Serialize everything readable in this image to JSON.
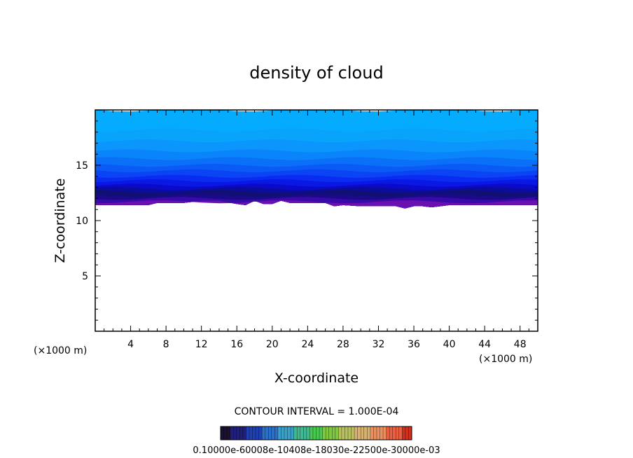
{
  "chart_data": {
    "type": "contour",
    "title": "density of cloud",
    "xlabel": "X-coordinate",
    "ylabel": "Z-coordinate",
    "x_unit": "(×1000 m)",
    "y_unit": "(×1000 m)",
    "xlim": [
      0,
      50
    ],
    "ylim": [
      0,
      20
    ],
    "x_ticks": [
      4,
      8,
      12,
      16,
      20,
      24,
      28,
      32,
      36,
      40,
      44,
      48
    ],
    "y_ticks": [
      5,
      10,
      15
    ],
    "x_tick_labels": [
      "4",
      "8",
      "12",
      "16",
      "20",
      "24",
      "28",
      "32",
      "36",
      "40",
      "44",
      "48"
    ],
    "y_tick_labels": [
      "5",
      "10",
      "15"
    ],
    "contour_interval_text": "CONTOUR INTERVAL = 1.000E-04",
    "colorbar_labels_text": "0.10000e-60008e-10408e-18030e-22500e-30000e-03",
    "cloud_base_profile": {
      "x": [
        0,
        2,
        4,
        6,
        7,
        8,
        10,
        12,
        14,
        16,
        17,
        18,
        19,
        20,
        21,
        22,
        24,
        26,
        27,
        28,
        30,
        32,
        34,
        35,
        36,
        37,
        38,
        40,
        42,
        44,
        46,
        48,
        50
      ],
      "z": [
        11.4,
        11.4,
        11.4,
        11.4,
        11.6,
        11.6,
        11.6,
        11.8,
        11.8,
        11.5,
        11.4,
        11.8,
        11.5,
        11.5,
        11.8,
        11.6,
        11.6,
        11.6,
        11.3,
        11.4,
        11.3,
        11.3,
        11.3,
        11.1,
        11.3,
        11.3,
        11.2,
        11.4,
        11.4,
        11.4,
        11.4,
        11.4,
        11.4
      ]
    },
    "color_bands": [
      {
        "z_top": 11.7,
        "color": "#6a0fb0"
      },
      {
        "z_top": 12.0,
        "color": "#3a0aa8"
      },
      {
        "z_top": 12.3,
        "color": "#1a0a8a"
      },
      {
        "z_top": 12.6,
        "color": "#101070"
      },
      {
        "z_top": 12.9,
        "color": "#0c0c9a"
      },
      {
        "z_top": 13.2,
        "color": "#0a0ac8"
      },
      {
        "z_top": 13.6,
        "color": "#0a18e6"
      },
      {
        "z_top": 14.0,
        "color": "#0a2cf0"
      },
      {
        "z_top": 14.5,
        "color": "#0a44f4"
      },
      {
        "z_top": 15.0,
        "color": "#0a5af6"
      },
      {
        "z_top": 15.6,
        "color": "#0a70f8"
      },
      {
        "z_top": 16.3,
        "color": "#0a84fa"
      },
      {
        "z_top": 17.2,
        "color": "#0a96fc"
      },
      {
        "z_top": 18.2,
        "color": "#08a4fc"
      },
      {
        "z_top": 20.0,
        "color": "#05abfd"
      }
    ],
    "colorbar_colors": [
      "#1a1030",
      "#20207a",
      "#1e40b0",
      "#2a70c8",
      "#3aa0c8",
      "#40b890",
      "#48c850",
      "#80c840",
      "#b8c060",
      "#d8b070",
      "#e89060",
      "#e86040",
      "#d03020"
    ]
  }
}
